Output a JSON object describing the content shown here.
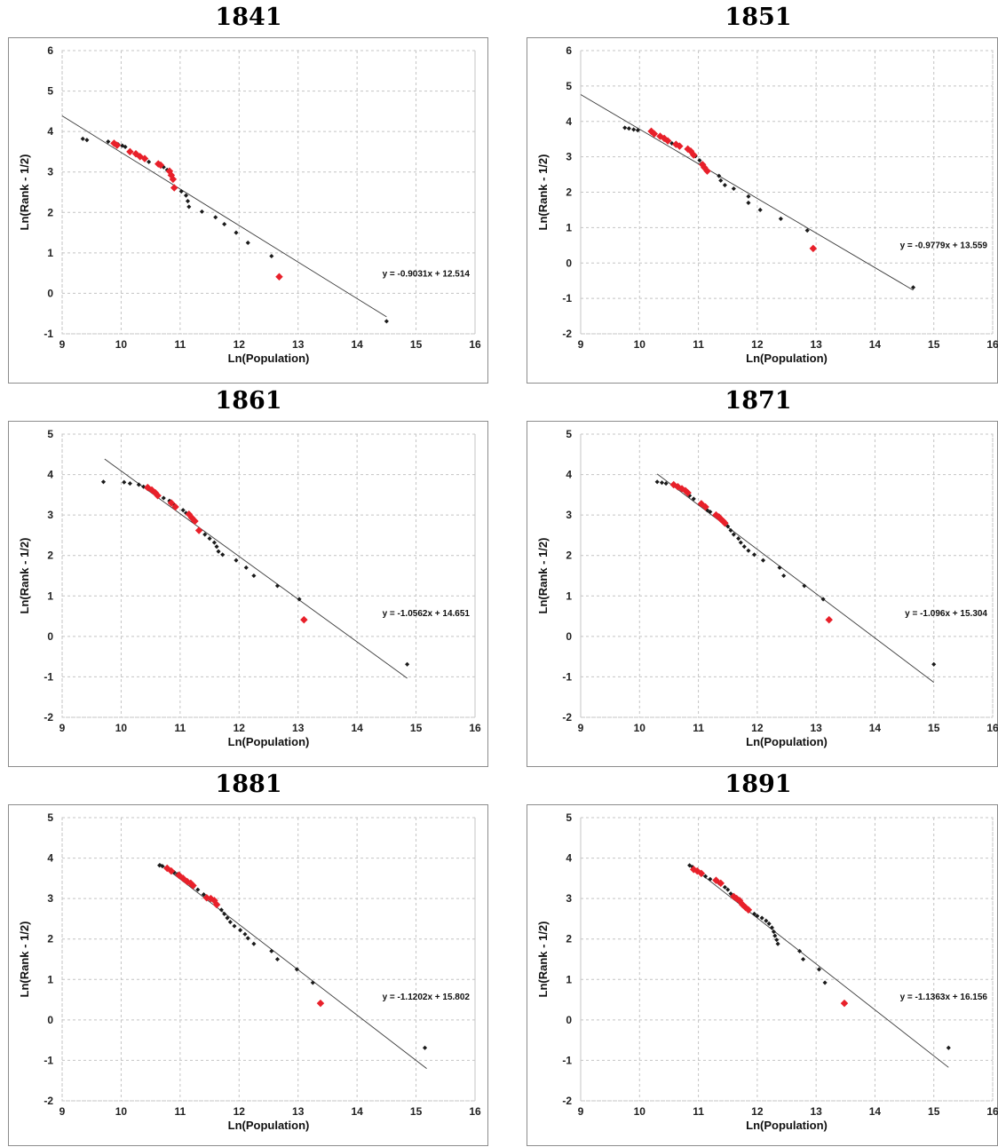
{
  "chart_data": [
    {
      "type": "scatter",
      "title": "1841",
      "xlabel": "Ln(Population)",
      "ylabel": "Ln(Rank - 1/2)",
      "xlim": [
        9,
        16
      ],
      "ylim": [
        -1,
        6
      ],
      "xticks": [
        "9",
        "10",
        "11",
        "12",
        "13",
        "14",
        "15",
        "16"
      ],
      "yticks": [
        "-1",
        "0",
        "1",
        "2",
        "3",
        "4",
        "5",
        "6"
      ],
      "grid": true,
      "equation": "y = -0.9031x + 12.514",
      "trendline": {
        "slope": -0.9031,
        "intercept": 12.514,
        "x_range": [
          9,
          14.5
        ]
      },
      "series": [
        {
          "color": "#1a1a1a",
          "points": [
            [
              9.35,
              3.82
            ],
            [
              9.42,
              3.79
            ],
            [
              9.78,
              3.75
            ],
            [
              9.88,
              3.72
            ],
            [
              9.95,
              3.68
            ],
            [
              10.02,
              3.65
            ],
            [
              10.07,
              3.62
            ],
            [
              10.47,
              3.25
            ],
            [
              10.72,
              3.12
            ],
            [
              10.78,
              3.05
            ],
            [
              10.83,
              2.98
            ],
            [
              11.02,
              2.52
            ],
            [
              11.1,
              2.42
            ],
            [
              11.13,
              2.28
            ],
            [
              11.15,
              2.14
            ],
            [
              11.37,
              2.02
            ],
            [
              11.6,
              1.88
            ],
            [
              11.75,
              1.71
            ],
            [
              11.95,
              1.5
            ],
            [
              12.15,
              1.25
            ],
            [
              12.55,
              0.92
            ],
            [
              14.5,
              -0.69
            ]
          ]
        },
        {
          "color": "#e8202a",
          "points": [
            [
              9.88,
              3.71
            ],
            [
              9.93,
              3.66
            ],
            [
              10.15,
              3.5
            ],
            [
              10.25,
              3.45
            ],
            [
              10.32,
              3.38
            ],
            [
              10.4,
              3.33
            ],
            [
              10.63,
              3.2
            ],
            [
              10.67,
              3.17
            ],
            [
              10.82,
              3.02
            ],
            [
              10.85,
              2.92
            ],
            [
              10.88,
              2.82
            ],
            [
              10.9,
              2.61
            ],
            [
              12.68,
              0.41
            ]
          ]
        }
      ]
    },
    {
      "type": "scatter",
      "title": "1851",
      "xlabel": "Ln(Population)",
      "ylabel": "Ln(Rank - 1/2)",
      "xlim": [
        9,
        16
      ],
      "ylim": [
        -2,
        6
      ],
      "xticks": [
        "9",
        "10",
        "11",
        "12",
        "13",
        "14",
        "15",
        "16"
      ],
      "yticks": [
        "-2",
        "-1",
        "0",
        "1",
        "2",
        "3",
        "4",
        "5",
        "6"
      ],
      "grid": true,
      "equation": "y = -0.9779x + 13.559",
      "trendline": {
        "slope": -0.9779,
        "intercept": 13.559,
        "x_range": [
          9,
          14.65
        ]
      },
      "series": [
        {
          "color": "#1a1a1a",
          "points": [
            [
              9.75,
              3.82
            ],
            [
              9.82,
              3.8
            ],
            [
              9.9,
              3.77
            ],
            [
              9.97,
              3.75
            ],
            [
              10.55,
              3.38
            ],
            [
              10.95,
              3.02
            ],
            [
              11.02,
              2.9
            ],
            [
              11.05,
              2.8
            ],
            [
              11.35,
              2.46
            ],
            [
              11.38,
              2.33
            ],
            [
              11.45,
              2.2
            ],
            [
              11.6,
              2.1
            ],
            [
              11.85,
              1.88
            ],
            [
              11.85,
              1.7
            ],
            [
              12.05,
              1.5
            ],
            [
              12.4,
              1.25
            ],
            [
              12.85,
              0.92
            ],
            [
              14.65,
              -0.69
            ]
          ]
        },
        {
          "color": "#e8202a",
          "points": [
            [
              10.2,
              3.72
            ],
            [
              10.25,
              3.65
            ],
            [
              10.35,
              3.58
            ],
            [
              10.42,
              3.52
            ],
            [
              10.48,
              3.45
            ],
            [
              10.62,
              3.35
            ],
            [
              10.68,
              3.3
            ],
            [
              10.82,
              3.22
            ],
            [
              10.87,
              3.16
            ],
            [
              10.92,
              3.05
            ],
            [
              11.07,
              2.78
            ],
            [
              11.1,
              2.7
            ],
            [
              11.15,
              2.6
            ],
            [
              12.95,
              0.41
            ]
          ]
        }
      ]
    },
    {
      "type": "scatter",
      "title": "1861",
      "xlabel": "Ln(Population)",
      "ylabel": "Ln(Rank - 1/2)",
      "xlim": [
        9,
        16
      ],
      "ylim": [
        -2,
        5
      ],
      "xticks": [
        "9",
        "10",
        "11",
        "12",
        "13",
        "14",
        "15",
        "16"
      ],
      "yticks": [
        "-2",
        "-1",
        "0",
        "1",
        "2",
        "3",
        "4",
        "5"
      ],
      "grid": true,
      "equation": "y = -1.0562x + 14.651",
      "trendline": {
        "slope": -1.0562,
        "intercept": 14.651,
        "x_range": [
          9.72,
          14.85
        ]
      },
      "series": [
        {
          "color": "#1a1a1a",
          "points": [
            [
              9.7,
              3.82
            ],
            [
              10.05,
              3.81
            ],
            [
              10.15,
              3.78
            ],
            [
              10.3,
              3.75
            ],
            [
              10.38,
              3.7
            ],
            [
              10.72,
              3.42
            ],
            [
              10.82,
              3.35
            ],
            [
              10.9,
              3.25
            ],
            [
              11.05,
              3.12
            ],
            [
              11.1,
              3.05
            ],
            [
              11.42,
              2.52
            ],
            [
              11.5,
              2.42
            ],
            [
              11.58,
              2.32
            ],
            [
              11.62,
              2.22
            ],
            [
              11.65,
              2.1
            ],
            [
              11.72,
              2.02
            ],
            [
              11.95,
              1.88
            ],
            [
              12.12,
              1.7
            ],
            [
              12.25,
              1.5
            ],
            [
              12.65,
              1.25
            ],
            [
              13.02,
              0.92
            ],
            [
              14.85,
              -0.69
            ]
          ]
        },
        {
          "color": "#e8202a",
          "points": [
            [
              10.45,
              3.68
            ],
            [
              10.52,
              3.62
            ],
            [
              10.58,
              3.55
            ],
            [
              10.62,
              3.48
            ],
            [
              10.85,
              3.3
            ],
            [
              10.92,
              3.2
            ],
            [
              11.15,
              3.02
            ],
            [
              11.2,
              2.93
            ],
            [
              11.25,
              2.85
            ],
            [
              11.32,
              2.62
            ],
            [
              13.1,
              0.41
            ]
          ]
        }
      ]
    },
    {
      "type": "scatter",
      "title": "1871",
      "xlabel": "Ln(Population)",
      "ylabel": "Ln(Rank - 1/2)",
      "xlim": [
        9,
        16
      ],
      "ylim": [
        -2,
        5
      ],
      "xticks": [
        "9",
        "10",
        "11",
        "12",
        "13",
        "14",
        "15",
        "16"
      ],
      "yticks": [
        "-2",
        "-1",
        "0",
        "1",
        "2",
        "3",
        "4",
        "5"
      ],
      "grid": true,
      "equation": "y = -1.096x + 15.304",
      "trendline": {
        "slope": -1.096,
        "intercept": 15.304,
        "x_range": [
          10.3,
          15.0
        ]
      },
      "series": [
        {
          "color": "#1a1a1a",
          "points": [
            [
              10.3,
              3.82
            ],
            [
              10.38,
              3.8
            ],
            [
              10.45,
              3.78
            ],
            [
              10.85,
              3.48
            ],
            [
              10.92,
              3.4
            ],
            [
              11.15,
              3.12
            ],
            [
              11.2,
              3.08
            ],
            [
              11.5,
              2.72
            ],
            [
              11.55,
              2.62
            ],
            [
              11.6,
              2.52
            ],
            [
              11.68,
              2.42
            ],
            [
              11.72,
              2.32
            ],
            [
              11.78,
              2.22
            ],
            [
              11.85,
              2.12
            ],
            [
              11.95,
              2.02
            ],
            [
              12.1,
              1.88
            ],
            [
              12.38,
              1.7
            ],
            [
              12.45,
              1.5
            ],
            [
              12.8,
              1.25
            ],
            [
              13.12,
              0.92
            ],
            [
              15.0,
              -0.69
            ]
          ]
        },
        {
          "color": "#e8202a",
          "points": [
            [
              10.58,
              3.75
            ],
            [
              10.65,
              3.7
            ],
            [
              10.72,
              3.65
            ],
            [
              10.78,
              3.6
            ],
            [
              10.82,
              3.55
            ],
            [
              11.05,
              3.28
            ],
            [
              11.12,
              3.2
            ],
            [
              11.3,
              3.0
            ],
            [
              11.35,
              2.95
            ],
            [
              11.38,
              2.9
            ],
            [
              11.42,
              2.85
            ],
            [
              11.45,
              2.8
            ],
            [
              13.22,
              0.41
            ]
          ]
        }
      ]
    },
    {
      "type": "scatter",
      "title": "1881",
      "xlabel": "Ln(Population)",
      "ylabel": "Ln(Rank - 1/2)",
      "xlim": [
        9,
        16
      ],
      "ylim": [
        -2,
        5
      ],
      "xticks": [
        "9",
        "10",
        "11",
        "12",
        "13",
        "14",
        "15",
        "16"
      ],
      "yticks": [
        "-2",
        "-1",
        "0",
        "1",
        "2",
        "3",
        "4",
        "5"
      ],
      "grid": true,
      "equation": "y = -1.1202x + 15.802",
      "trendline": {
        "slope": -1.1202,
        "intercept": 15.802,
        "x_range": [
          10.65,
          15.18
        ]
      },
      "series": [
        {
          "color": "#1a1a1a",
          "points": [
            [
              10.65,
              3.82
            ],
            [
              10.7,
              3.8
            ],
            [
              10.9,
              3.65
            ],
            [
              10.95,
              3.6
            ],
            [
              11.22,
              3.28
            ],
            [
              11.3,
              3.22
            ],
            [
              11.4,
              3.1
            ],
            [
              11.7,
              2.72
            ],
            [
              11.75,
              2.62
            ],
            [
              11.8,
              2.52
            ],
            [
              11.85,
              2.42
            ],
            [
              11.92,
              2.32
            ],
            [
              12.02,
              2.22
            ],
            [
              12.1,
              2.12
            ],
            [
              12.15,
              2.02
            ],
            [
              12.25,
              1.88
            ],
            [
              12.55,
              1.7
            ],
            [
              12.65,
              1.5
            ],
            [
              12.98,
              1.25
            ],
            [
              13.25,
              0.92
            ],
            [
              15.15,
              -0.69
            ]
          ]
        },
        {
          "color": "#e8202a",
          "points": [
            [
              10.78,
              3.75
            ],
            [
              10.85,
              3.68
            ],
            [
              10.98,
              3.58
            ],
            [
              11.05,
              3.5
            ],
            [
              11.12,
              3.42
            ],
            [
              11.18,
              3.38
            ],
            [
              11.22,
              3.32
            ],
            [
              11.45,
              3.02
            ],
            [
              11.52,
              3.0
            ],
            [
              11.58,
              2.95
            ],
            [
              11.62,
              2.85
            ],
            [
              13.38,
              0.41
            ]
          ]
        }
      ]
    },
    {
      "type": "scatter",
      "title": "1891",
      "xlabel": "Ln(Population)",
      "ylabel": "Ln(Rank - 1/2)",
      "xlim": [
        9,
        16
      ],
      "ylim": [
        -2,
        5
      ],
      "xticks": [
        "9",
        "10",
        "11",
        "12",
        "13",
        "14",
        "15",
        "16"
      ],
      "yticks": [
        "-2",
        "-1",
        "0",
        "1",
        "2",
        "3",
        "4",
        "5"
      ],
      "grid": true,
      "equation": "y = -1.1363x + 16.156",
      "trendline": {
        "slope": -1.1363,
        "intercept": 16.156,
        "x_range": [
          10.85,
          15.25
        ]
      },
      "series": [
        {
          "color": "#1a1a1a",
          "points": [
            [
              10.85,
              3.82
            ],
            [
              10.9,
              3.78
            ],
            [
              11.12,
              3.55
            ],
            [
              11.2,
              3.48
            ],
            [
              11.35,
              3.38
            ],
            [
              11.45,
              3.28
            ],
            [
              11.5,
              3.22
            ],
            [
              11.55,
              3.12
            ],
            [
              11.95,
              2.62
            ],
            [
              12.0,
              2.57
            ],
            [
              12.08,
              2.52
            ],
            [
              12.15,
              2.45
            ],
            [
              12.2,
              2.38
            ],
            [
              12.25,
              2.28
            ],
            [
              12.28,
              2.18
            ],
            [
              12.3,
              2.08
            ],
            [
              12.33,
              1.98
            ],
            [
              12.35,
              1.88
            ],
            [
              12.72,
              1.7
            ],
            [
              12.78,
              1.5
            ],
            [
              13.05,
              1.25
            ],
            [
              13.15,
              0.92
            ],
            [
              15.25,
              -0.69
            ]
          ]
        },
        {
          "color": "#e8202a",
          "points": [
            [
              10.92,
              3.72
            ],
            [
              10.98,
              3.68
            ],
            [
              11.05,
              3.62
            ],
            [
              11.3,
              3.45
            ],
            [
              11.38,
              3.38
            ],
            [
              11.6,
              3.05
            ],
            [
              11.65,
              3.0
            ],
            [
              11.7,
              2.95
            ],
            [
              11.75,
              2.85
            ],
            [
              11.8,
              2.78
            ],
            [
              11.85,
              2.72
            ],
            [
              13.48,
              0.41
            ]
          ]
        }
      ]
    }
  ]
}
